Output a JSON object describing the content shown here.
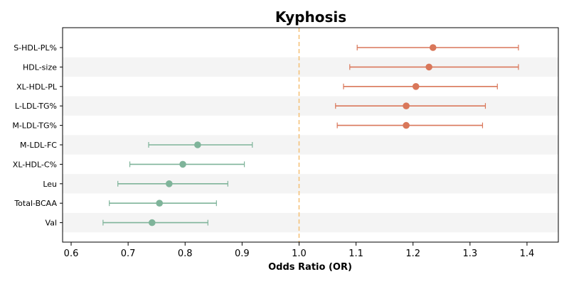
{
  "chart_data": {
    "type": "forest",
    "title": "Kyphosis",
    "xlabel": "Odds Ratio (OR)",
    "ylabel": "",
    "xlim": [
      0.585,
      1.455
    ],
    "xticks": [
      0.6,
      0.7,
      0.8,
      0.9,
      1.0,
      1.1,
      1.2,
      1.3,
      1.4
    ],
    "xtick_labels": [
      "0.6",
      "0.7",
      "0.8",
      "0.9",
      "1.0",
      "1.1",
      "1.2",
      "1.3",
      "1.4"
    ],
    "reference_line": 1.0,
    "grid": false,
    "alternating_row_shading": true,
    "colors": {
      "increased": "#d9775a",
      "decreased": "#7fb49a",
      "reference_line": "#f5c27a",
      "row_shade": "#f4f4f4"
    },
    "rows": [
      {
        "label": "S-HDL-PL%",
        "or": 1.235,
        "lower": 1.102,
        "upper": 1.385,
        "group": "increased"
      },
      {
        "label": "HDL-size",
        "or": 1.228,
        "lower": 1.089,
        "upper": 1.385,
        "group": "increased"
      },
      {
        "label": "XL-HDL-PL",
        "or": 1.205,
        "lower": 1.078,
        "upper": 1.348,
        "group": "increased"
      },
      {
        "label": "L-LDL-TG%",
        "or": 1.188,
        "lower": 1.064,
        "upper": 1.327,
        "group": "increased"
      },
      {
        "label": "M-LDL-TG%",
        "or": 1.188,
        "lower": 1.067,
        "upper": 1.322,
        "group": "increased"
      },
      {
        "label": "M-LDL-FC",
        "or": 0.822,
        "lower": 0.736,
        "upper": 0.918,
        "group": "decreased"
      },
      {
        "label": "XL-HDL-C%",
        "or": 0.796,
        "lower": 0.703,
        "upper": 0.904,
        "group": "decreased"
      },
      {
        "label": "Leu",
        "or": 0.772,
        "lower": 0.682,
        "upper": 0.875,
        "group": "decreased"
      },
      {
        "label": "Total-BCAA",
        "or": 0.755,
        "lower": 0.667,
        "upper": 0.855,
        "group": "decreased"
      },
      {
        "label": "Val",
        "or": 0.742,
        "lower": 0.656,
        "upper": 0.84,
        "group": "decreased"
      }
    ]
  }
}
